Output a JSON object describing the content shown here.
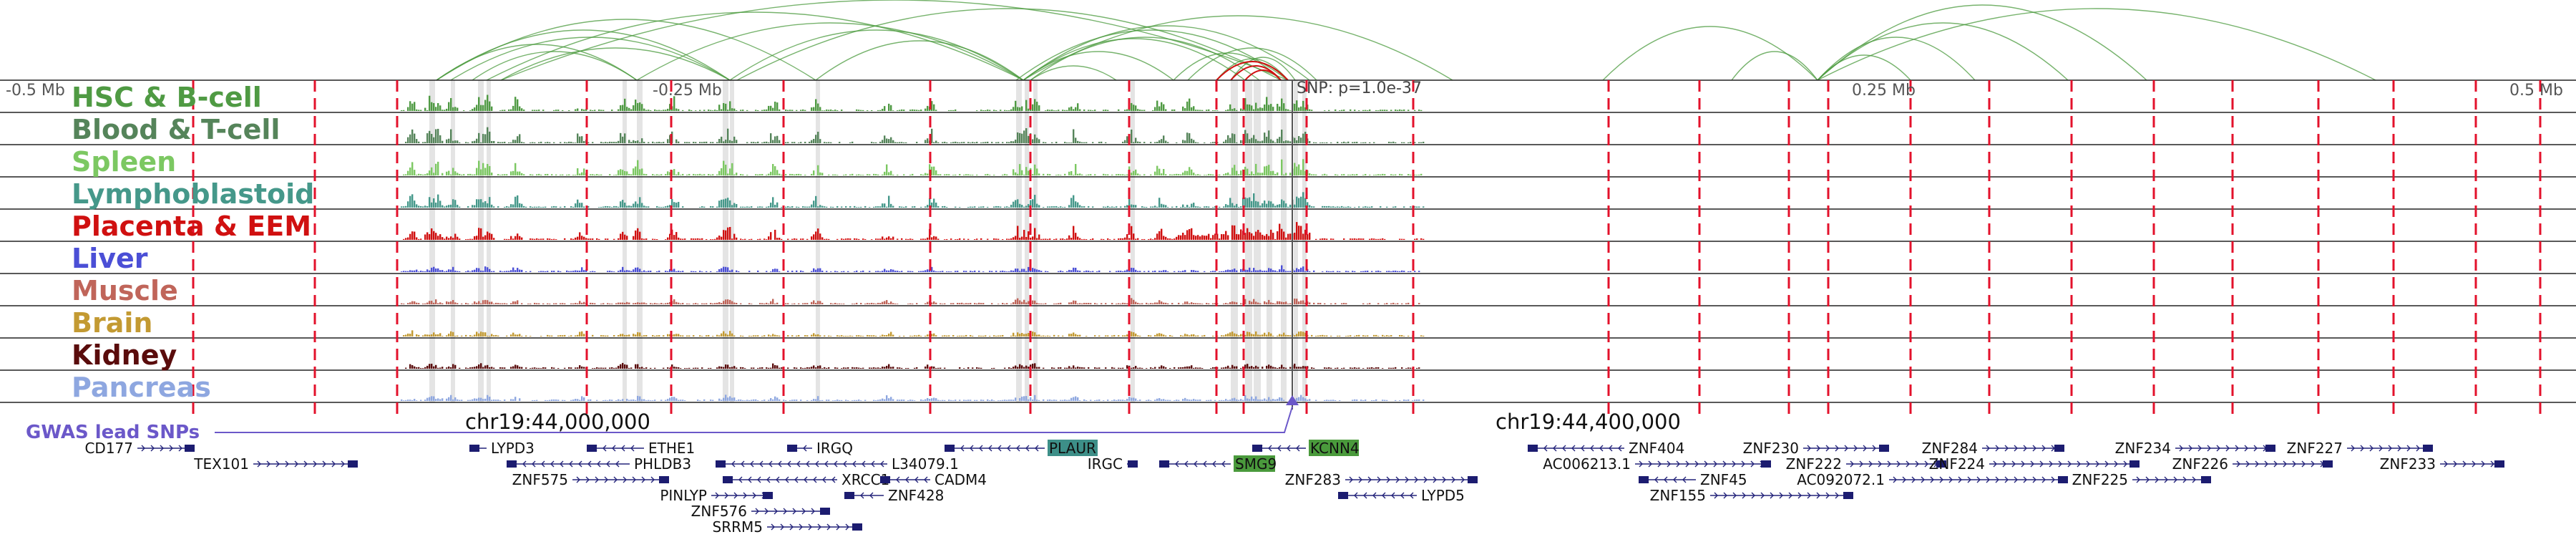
{
  "axis": {
    "ticks": [
      "-0.5 Mb",
      "-0.25 Mb",
      "0.25 Mb",
      "0.5 Mb"
    ],
    "coordinates": [
      "chr19:44,000,000",
      "chr19:44,400,000"
    ],
    "snp_label": "SNP: p=1.0e-37"
  },
  "tracks": [
    {
      "name": "HSC & B-cell",
      "color": "#4f9a43"
    },
    {
      "name": "Blood & T-cell",
      "color": "#55845a"
    },
    {
      "name": "Spleen",
      "color": "#7cc862"
    },
    {
      "name": "Lymphoblastoid",
      "color": "#45988a"
    },
    {
      "name": "Placenta & EEM",
      "color": "#d01010"
    },
    {
      "name": "Liver",
      "color": "#4b4fd6"
    },
    {
      "name": "Muscle",
      "color": "#c0655a"
    },
    {
      "name": "Brain",
      "color": "#c39a32"
    },
    {
      "name": "Kidney",
      "color": "#5a0c0c"
    },
    {
      "name": "Pancreas",
      "color": "#8ea7e0"
    }
  ],
  "gwas": {
    "label": "GWAS lead SNPs",
    "color": "#6b58c9"
  },
  "genes": [
    {
      "name": "CD177",
      "strand": "+",
      "row": 0
    },
    {
      "name": "TEX101",
      "strand": "+",
      "row": 1
    },
    {
      "name": "LYPD3",
      "strand": "-",
      "row": 0
    },
    {
      "name": "PHLDB3",
      "strand": "-",
      "row": 1
    },
    {
      "name": "ETHE1",
      "strand": "-",
      "row": 0
    },
    {
      "name": "ZNF575",
      "strand": "+",
      "row": 2
    },
    {
      "name": "XRCC1",
      "strand": "-",
      "row": 2
    },
    {
      "name": "PINLYP",
      "strand": "+",
      "row": 3
    },
    {
      "name": "ZNF576",
      "strand": "+",
      "row": 4
    },
    {
      "name": "SRRM5",
      "strand": "+",
      "row": 5
    },
    {
      "name": "IRGQ",
      "strand": "-",
      "row": 0
    },
    {
      "name": "L34079.1",
      "strand": "-",
      "row": 1
    },
    {
      "name": "ZNF428",
      "strand": "-",
      "row": 3
    },
    {
      "name": "CADM4",
      "strand": "-",
      "row": 2
    },
    {
      "name": "PLAUR",
      "strand": "-",
      "row": 0,
      "highlight": true
    },
    {
      "name": "IRGC",
      "strand": "+",
      "row": 1
    },
    {
      "name": "SMG9",
      "strand": "-",
      "row": 1,
      "highlight": true
    },
    {
      "name": "KCNN4",
      "strand": "-",
      "row": 0,
      "highlight": true
    },
    {
      "name": "ZNF283",
      "strand": "+",
      "row": 2
    },
    {
      "name": "LYPD5",
      "strand": "-",
      "row": 3
    },
    {
      "name": "ZNF404",
      "strand": "-",
      "row": 0
    },
    {
      "name": "AC006213.1",
      "strand": "+",
      "row": 1
    },
    {
      "name": "ZNF45",
      "strand": "-",
      "row": 2
    },
    {
      "name": "ZNF155",
      "strand": "+",
      "row": 3
    },
    {
      "name": "ZNF230",
      "strand": "+",
      "row": 0
    },
    {
      "name": "ZNF222",
      "strand": "+",
      "row": 1
    },
    {
      "name": "AC092072.1",
      "strand": "+",
      "row": 2
    },
    {
      "name": "ZNF284",
      "strand": "+",
      "row": 0
    },
    {
      "name": "ZNF224",
      "strand": "+",
      "row": 1
    },
    {
      "name": "ZNF225",
      "strand": "+",
      "row": 2
    },
    {
      "name": "ZNF234",
      "strand": "+",
      "row": 0
    },
    {
      "name": "ZNF226",
      "strand": "+",
      "row": 1
    },
    {
      "name": "ZNF227",
      "strand": "+",
      "row": 0
    },
    {
      "name": "ZNF233",
      "strand": "+",
      "row": 1
    }
  ]
}
